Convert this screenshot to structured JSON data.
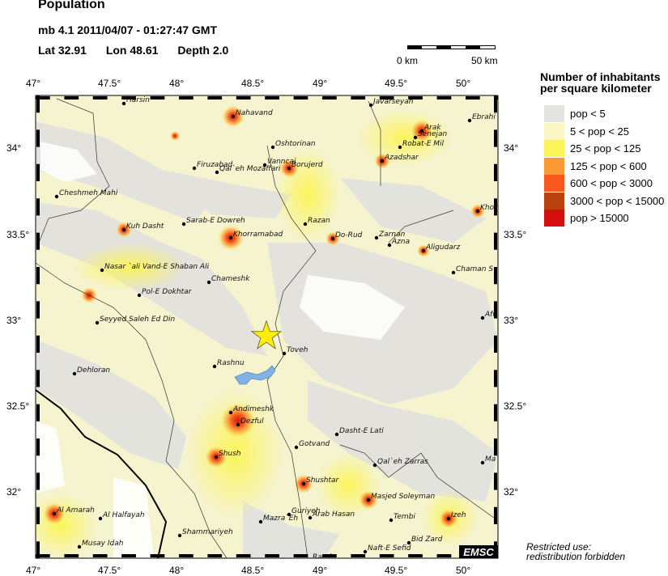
{
  "header": {
    "title": "Population",
    "event": "mb 4.1  2011/04/07 - 01:27:47 GMT",
    "lat_label": "Lat 32.91",
    "lon_label": "Lon  48.61",
    "depth_label": "Depth  2.0"
  },
  "epicenter": {
    "lat": 32.91,
    "lon": 48.61,
    "color": "#ffee00"
  },
  "scale_bar": {
    "start": "0 km",
    "end": "50 km"
  },
  "axes": {
    "lon_ticks": [
      "47°",
      "47.5°",
      "48°",
      "48.5°",
      "49°",
      "49.5°",
      "50°"
    ],
    "lat_ticks": [
      "34°",
      "33.5°",
      "33°",
      "32.5°",
      "32°"
    ]
  },
  "legend": {
    "title_line1": "Number of inhabitants",
    "title_line2": "per square kilometer",
    "items": [
      {
        "label": "pop < 5",
        "color": "#e3e3e1"
      },
      {
        "label": "5 < pop < 25",
        "color": "#fbf8c4"
      },
      {
        "label": "25 < pop < 125",
        "color": "#fbf55a"
      },
      {
        "label": "125 < pop < 600",
        "color": "#fb9935"
      },
      {
        "label": "600 < pop < 3000",
        "color": "#f9581c"
      },
      {
        "label": "3000 < pop < 15000",
        "color": "#b9420f"
      },
      {
        "label": "pop > 15000",
        "color": "#d50d0d"
      }
    ]
  },
  "cities": [
    "Harsin",
    "Nahavand",
    "Oshtorinan",
    "Firuzabad",
    "Qal`eh Mozaffari",
    "Vanncai",
    "Borujerd",
    "Cheshmeh Mahi",
    "Kuh Dasht",
    "Sarab-E Dowreh",
    "Khorramabad",
    "Razan",
    "Do-Rud",
    "Zarnan",
    "Azna",
    "Aligudarz",
    "Javarseyan",
    "Ebrahi",
    "Arak",
    "Senejan",
    "Robat-E Mil",
    "Azadshar",
    "Khor",
    "Chaman S",
    "Afu",
    "Nasar `ali Vand-E Shaban Ali",
    "Chameshk",
    "Pol-E Dokhtar",
    "Seyyed Saleh Ed Din",
    "Dehloran",
    "Toveh",
    "Rashnu",
    "Andimeshk",
    "Dezful",
    "Shush",
    "Gotvand",
    "Dasht-E Lati",
    "Qal`eh Zarras",
    "Ma",
    "Shushtar",
    "Masjed Soleyman",
    "Guriyeh",
    "Arab Hasan",
    "Mazra`Eh",
    "Tembi",
    "Izeh",
    "Bid Zard",
    "Naft-E Sefid",
    "Ramin",
    "Al Amarah",
    "Al Halfayah",
    "Musay Idah",
    "Shammariyeh"
  ],
  "logo": "EMSC",
  "note": {
    "line1": "Restricted use:",
    "line2": "redistribution forbidden"
  }
}
